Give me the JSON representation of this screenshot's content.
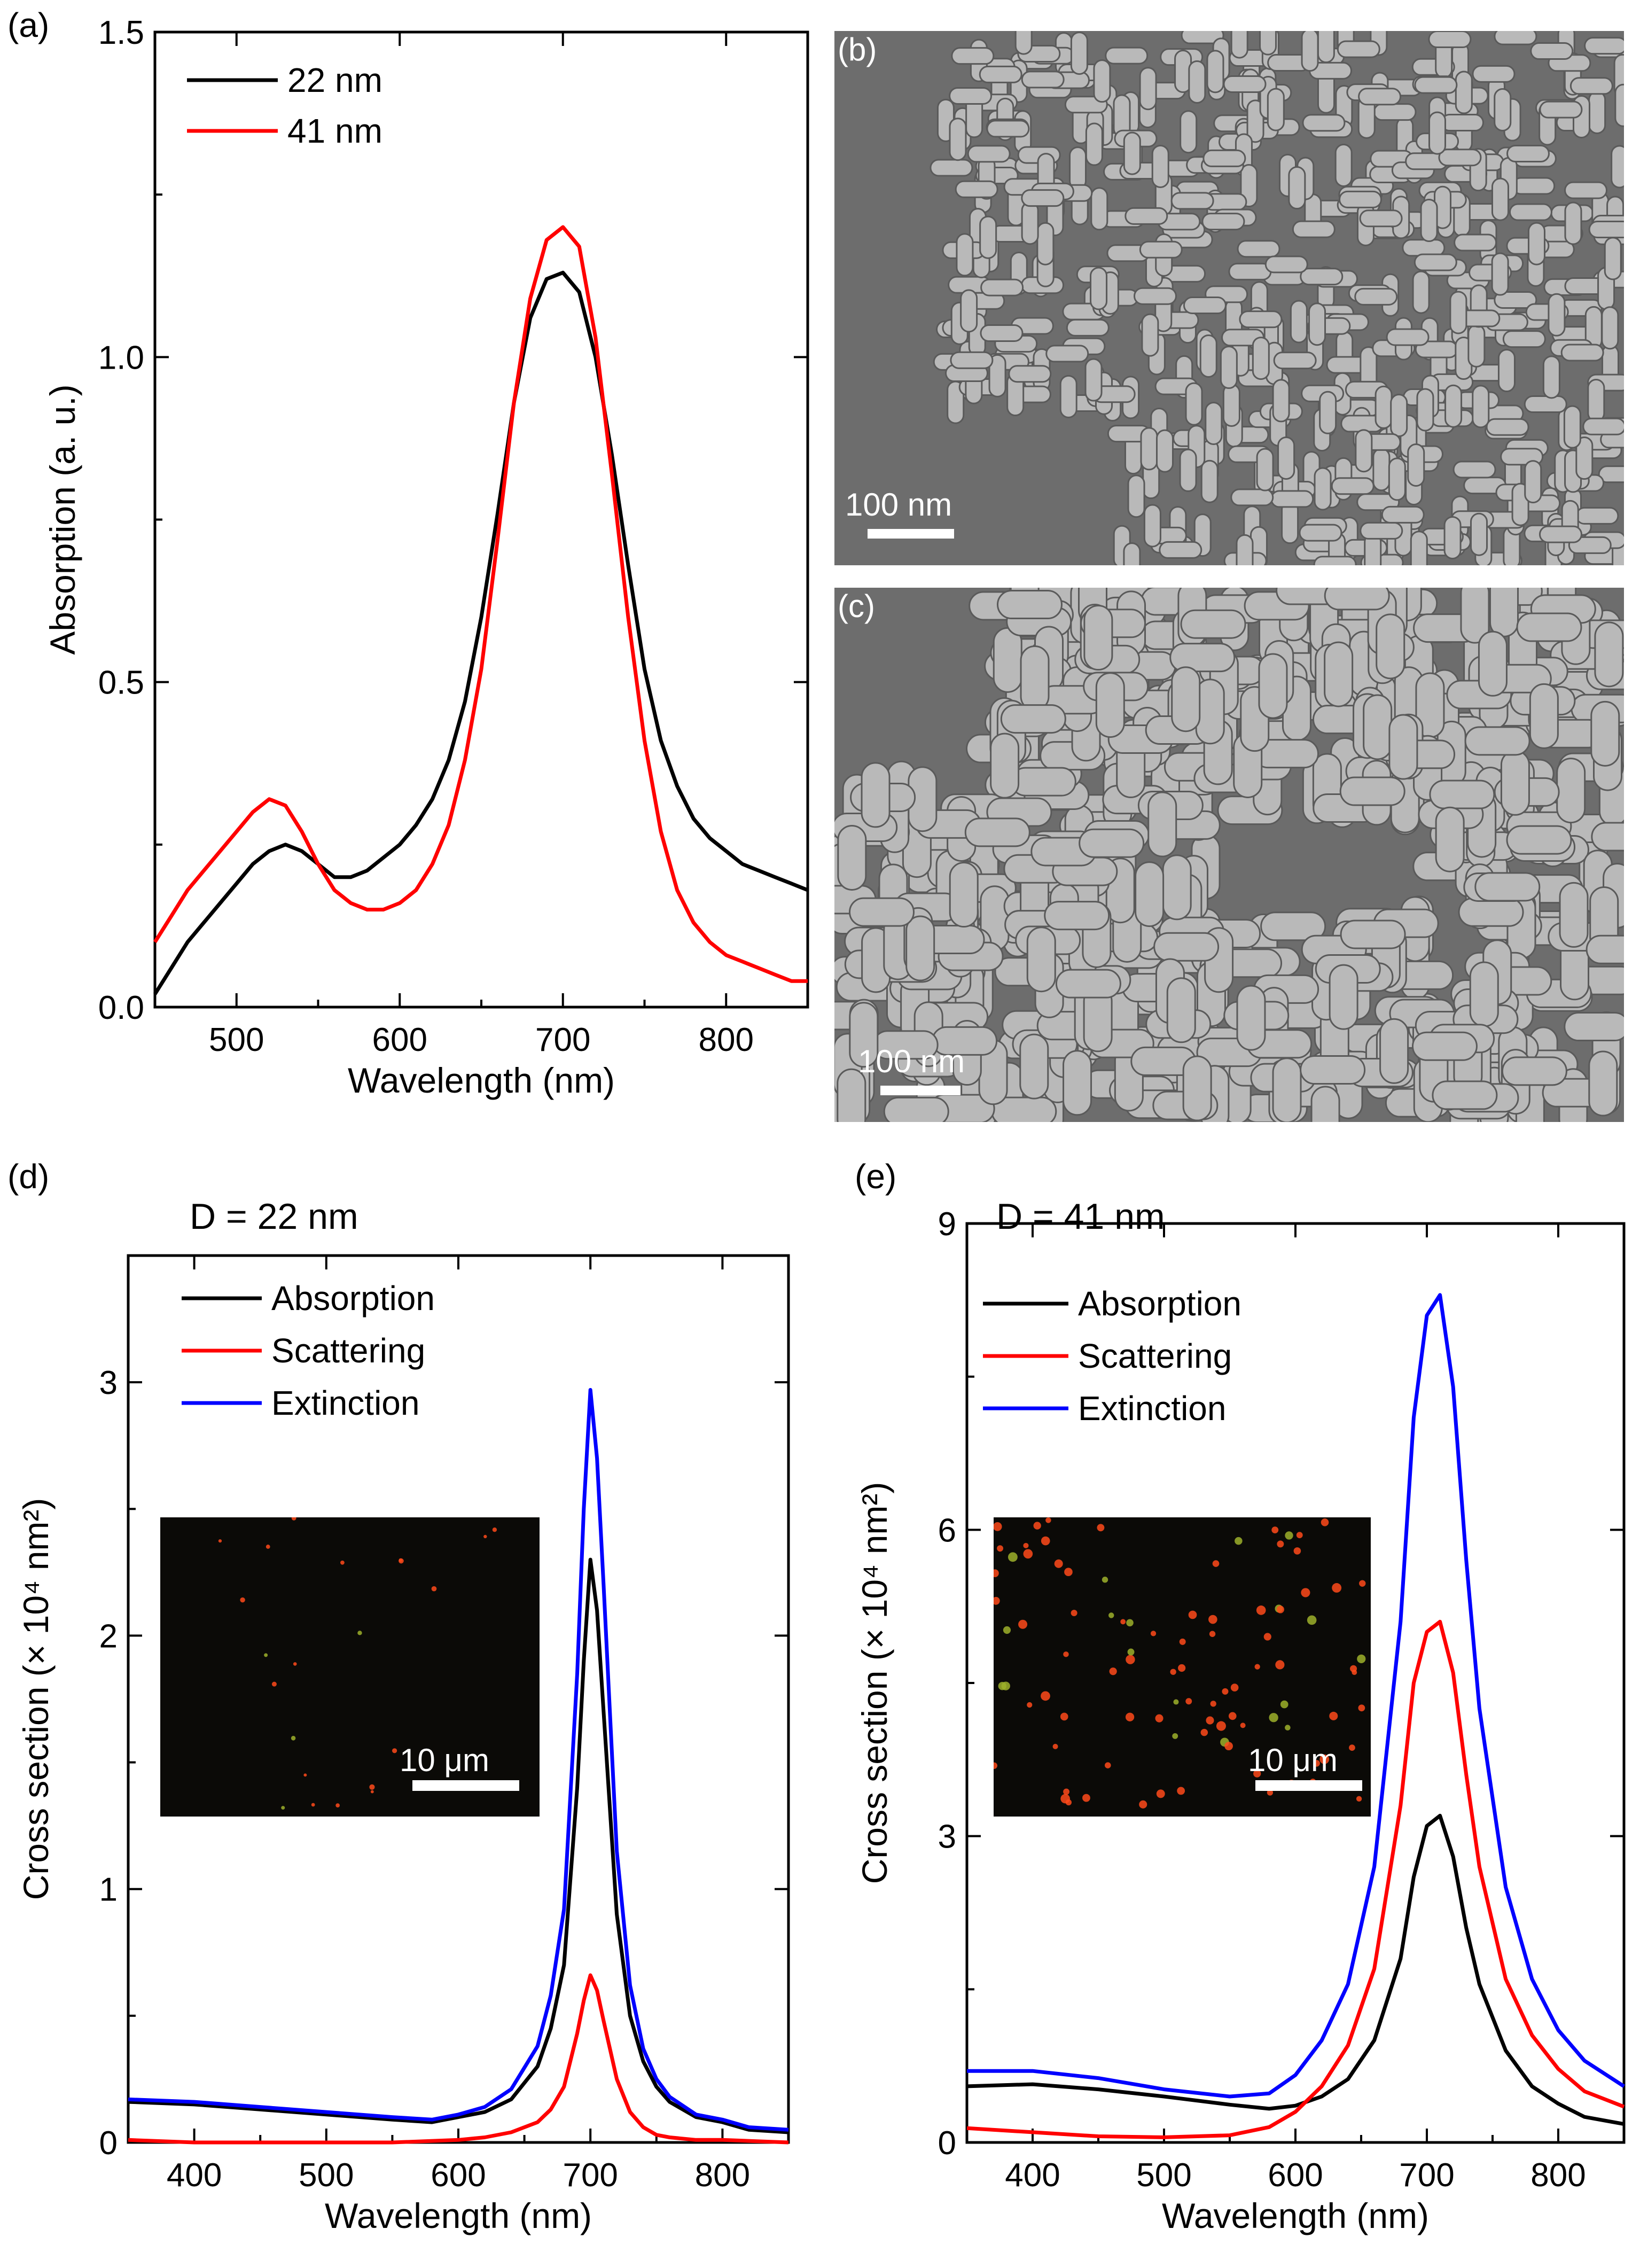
{
  "figure": {
    "panels": {
      "a": {
        "label": "(a)"
      },
      "b": {
        "label": "(b)",
        "scale_bar": "100 nm"
      },
      "c": {
        "label": "(c)",
        "scale_bar": "100 nm"
      },
      "d": {
        "label": "(d)",
        "inset_scale_bar": "10 μm"
      },
      "e": {
        "label": "(e)",
        "inset_scale_bar": "10 μm"
      }
    }
  },
  "chart_data": [
    {
      "id": "a",
      "type": "line",
      "title": "",
      "xlabel": "Wavelength (nm)",
      "ylabel": "Absorption (a. u.)",
      "xlim": [
        450,
        850
      ],
      "ylim": [
        0,
        1.5
      ],
      "xticks": [
        500,
        600,
        700,
        800
      ],
      "yticks": [
        0.0,
        0.5,
        1.0,
        1.5
      ],
      "ytick_labels": [
        "0.0",
        "0.5",
        "1.0",
        "1.5"
      ],
      "legend_location": "top-left",
      "series": [
        {
          "name": "22 nm",
          "color": "#000000",
          "x": [
            450,
            460,
            470,
            480,
            490,
            500,
            510,
            520,
            530,
            540,
            550,
            560,
            570,
            580,
            590,
            600,
            610,
            620,
            630,
            640,
            650,
            660,
            670,
            680,
            690,
            700,
            710,
            720,
            730,
            740,
            750,
            760,
            770,
            780,
            790,
            800,
            810,
            820,
            830,
            840,
            850
          ],
          "y": [
            0.02,
            0.06,
            0.1,
            0.13,
            0.16,
            0.19,
            0.22,
            0.24,
            0.25,
            0.24,
            0.22,
            0.2,
            0.2,
            0.21,
            0.23,
            0.25,
            0.28,
            0.32,
            0.38,
            0.47,
            0.6,
            0.76,
            0.93,
            1.06,
            1.12,
            1.13,
            1.1,
            1.0,
            0.85,
            0.68,
            0.52,
            0.41,
            0.34,
            0.29,
            0.26,
            0.24,
            0.22,
            0.21,
            0.2,
            0.19,
            0.18
          ]
        },
        {
          "name": "41 nm",
          "color": "#ff0000",
          "x": [
            450,
            460,
            470,
            480,
            490,
            500,
            510,
            520,
            530,
            540,
            550,
            560,
            570,
            580,
            590,
            600,
            610,
            620,
            630,
            640,
            650,
            660,
            670,
            680,
            690,
            700,
            710,
            720,
            730,
            740,
            750,
            760,
            770,
            780,
            790,
            800,
            810,
            820,
            830,
            840,
            850
          ],
          "y": [
            0.1,
            0.14,
            0.18,
            0.21,
            0.24,
            0.27,
            0.3,
            0.32,
            0.31,
            0.27,
            0.22,
            0.18,
            0.16,
            0.15,
            0.15,
            0.16,
            0.18,
            0.22,
            0.28,
            0.38,
            0.52,
            0.72,
            0.93,
            1.09,
            1.18,
            1.2,
            1.17,
            1.03,
            0.82,
            0.6,
            0.41,
            0.27,
            0.18,
            0.13,
            0.1,
            0.08,
            0.07,
            0.06,
            0.05,
            0.04,
            0.04
          ]
        }
      ]
    },
    {
      "id": "d",
      "type": "line",
      "title": "D = 22 nm",
      "xlabel": "Wavelength (nm)",
      "ylabel": "Cross section (× 10⁴ nm²)",
      "xlim": [
        350,
        850
      ],
      "ylim": [
        0,
        3.5
      ],
      "xticks": [
        400,
        500,
        600,
        700,
        800
      ],
      "yticks": [
        0,
        1,
        2,
        3
      ],
      "ytick_labels": [
        "0",
        "1",
        "2",
        "3"
      ],
      "legend_location": "top-left",
      "series": [
        {
          "name": "Absorption",
          "color": "#000000",
          "x": [
            350,
            400,
            450,
            500,
            550,
            580,
            600,
            620,
            640,
            660,
            670,
            680,
            690,
            695,
            700,
            705,
            710,
            720,
            730,
            740,
            750,
            760,
            780,
            800,
            820,
            850
          ],
          "y": [
            0.16,
            0.15,
            0.13,
            0.11,
            0.09,
            0.08,
            0.1,
            0.12,
            0.17,
            0.3,
            0.45,
            0.7,
            1.4,
            1.9,
            2.3,
            2.1,
            1.7,
            0.9,
            0.5,
            0.32,
            0.22,
            0.16,
            0.1,
            0.08,
            0.05,
            0.04
          ]
        },
        {
          "name": "Scattering",
          "color": "#ff0000",
          "x": [
            350,
            400,
            450,
            500,
            550,
            600,
            620,
            640,
            660,
            670,
            680,
            690,
            695,
            700,
            705,
            710,
            720,
            730,
            740,
            750,
            760,
            780,
            800,
            850
          ],
          "y": [
            0.01,
            0.0,
            0.0,
            0.0,
            0.0,
            0.01,
            0.02,
            0.04,
            0.08,
            0.13,
            0.22,
            0.43,
            0.56,
            0.66,
            0.6,
            0.48,
            0.25,
            0.12,
            0.06,
            0.03,
            0.02,
            0.01,
            0.01,
            0.0
          ]
        },
        {
          "name": "Extinction",
          "color": "#0000ff",
          "x": [
            350,
            400,
            450,
            500,
            550,
            580,
            600,
            620,
            640,
            660,
            670,
            680,
            690,
            695,
            700,
            705,
            710,
            720,
            730,
            740,
            750,
            760,
            780,
            800,
            820,
            850
          ],
          "y": [
            0.17,
            0.16,
            0.14,
            0.12,
            0.1,
            0.09,
            0.11,
            0.14,
            0.21,
            0.38,
            0.58,
            0.92,
            1.85,
            2.5,
            2.97,
            2.7,
            2.2,
            1.15,
            0.62,
            0.37,
            0.25,
            0.18,
            0.11,
            0.09,
            0.06,
            0.05
          ]
        }
      ]
    },
    {
      "id": "e",
      "type": "line",
      "title": "D = 41 nm",
      "xlabel": "Wavelength (nm)",
      "ylabel": "Cross section (× 10⁴ nm²)",
      "xlim": [
        350,
        850
      ],
      "ylim": [
        0,
        9
      ],
      "xticks": [
        400,
        500,
        600,
        700,
        800
      ],
      "yticks": [
        0,
        3,
        6,
        9
      ],
      "ytick_labels": [
        "0",
        "3",
        "6",
        "9"
      ],
      "legend_location": "top-left",
      "series": [
        {
          "name": "Absorption",
          "color": "#000000",
          "x": [
            350,
            400,
            450,
            500,
            550,
            580,
            600,
            620,
            640,
            660,
            680,
            690,
            700,
            710,
            720,
            730,
            740,
            760,
            780,
            800,
            820,
            850
          ],
          "y": [
            0.55,
            0.57,
            0.52,
            0.45,
            0.37,
            0.33,
            0.36,
            0.45,
            0.62,
            1.0,
            1.8,
            2.6,
            3.1,
            3.2,
            2.8,
            2.1,
            1.55,
            0.9,
            0.55,
            0.38,
            0.25,
            0.18
          ]
        },
        {
          "name": "Scattering",
          "color": "#ff0000",
          "x": [
            350,
            400,
            450,
            500,
            550,
            580,
            600,
            620,
            640,
            660,
            680,
            690,
            700,
            710,
            720,
            730,
            740,
            760,
            780,
            800,
            820,
            850
          ],
          "y": [
            0.14,
            0.1,
            0.06,
            0.05,
            0.07,
            0.15,
            0.3,
            0.55,
            0.95,
            1.7,
            3.3,
            4.5,
            5.0,
            5.1,
            4.6,
            3.6,
            2.7,
            1.6,
            1.05,
            0.72,
            0.5,
            0.35
          ]
        },
        {
          "name": "Extinction",
          "color": "#0000ff",
          "x": [
            350,
            400,
            450,
            500,
            550,
            580,
            600,
            620,
            640,
            660,
            680,
            690,
            700,
            710,
            720,
            730,
            740,
            760,
            780,
            800,
            820,
            850
          ],
          "y": [
            0.7,
            0.7,
            0.63,
            0.52,
            0.45,
            0.48,
            0.66,
            1.0,
            1.55,
            2.7,
            5.1,
            7.1,
            8.1,
            8.3,
            7.4,
            5.7,
            4.25,
            2.5,
            1.6,
            1.1,
            0.8,
            0.55
          ]
        }
      ]
    }
  ]
}
